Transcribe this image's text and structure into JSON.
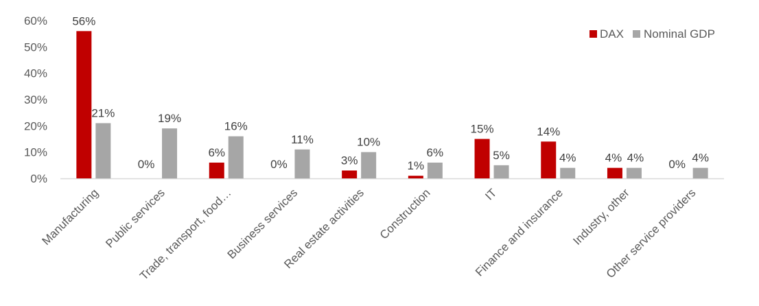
{
  "chart_data": {
    "type": "bar",
    "title": "",
    "xlabel": "",
    "ylabel": "",
    "ylim": [
      0,
      0.6
    ],
    "yticks": [
      "0%",
      "10%",
      "20%",
      "30%",
      "40%",
      "50%",
      "60%"
    ],
    "grid": false,
    "legend": "top-right",
    "categories": [
      "Manufacturing",
      "Public services",
      "Trade, transport, food…",
      "Business services",
      "Real estate activities",
      "Construction",
      "IT",
      "Finance and insurance",
      "Industry, other",
      "Other service providers"
    ],
    "series": [
      {
        "name": "DAX",
        "color": "#C00000",
        "values": [
          0.56,
          0.0,
          0.06,
          0.0,
          0.03,
          0.01,
          0.15,
          0.14,
          0.04,
          0.0
        ],
        "labels": [
          "56%",
          "0%",
          "6%",
          "0%",
          "3%",
          "1%",
          "15%",
          "14%",
          "4%",
          "0%"
        ]
      },
      {
        "name": "Nominal GDP",
        "color": "#A6A6A6",
        "values": [
          0.21,
          0.19,
          0.16,
          0.11,
          0.1,
          0.06,
          0.05,
          0.04,
          0.04,
          0.04
        ],
        "labels": [
          "21%",
          "19%",
          "16%",
          "11%",
          "10%",
          "6%",
          "5%",
          "4%",
          "4%",
          "4%"
        ]
      }
    ]
  }
}
